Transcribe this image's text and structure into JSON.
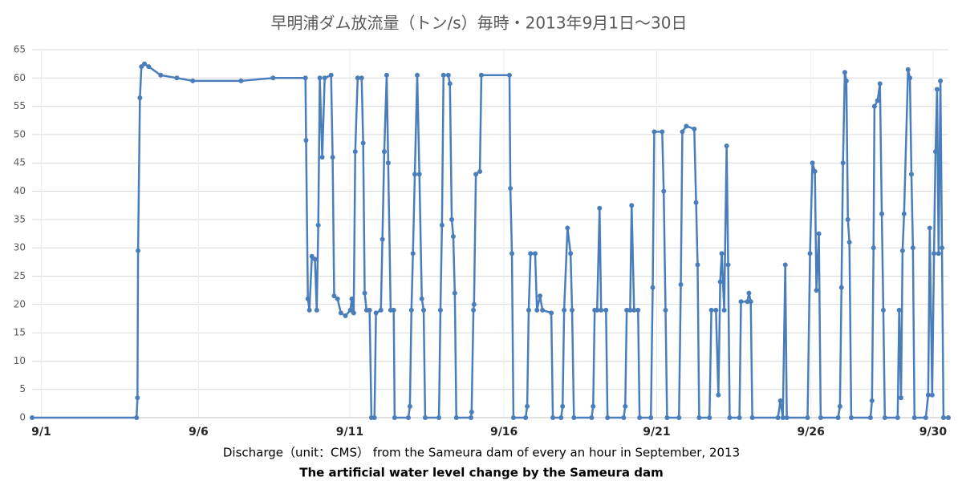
{
  "chart_data": {
    "type": "line",
    "title": "早明浦ダム放流量（トン/s）毎時・2013年9月1日～30日",
    "x_label": "Discharge（unit：CMS） from the Sameura dam of every an hour in September, 2013",
    "caption": "The artificial water level change by the Sameura dam",
    "color": "#4a7ebb",
    "grid": true,
    "markers": true,
    "xlim": [
      1,
      31
    ],
    "ylim": [
      0,
      65
    ],
    "yticks": [
      0,
      5,
      10,
      15,
      20,
      25,
      30,
      35,
      40,
      45,
      50,
      55,
      60,
      65
    ],
    "xticks": [
      {
        "value": 1.3,
        "label": "9/1"
      },
      {
        "value": 6.45,
        "label": "9/6"
      },
      {
        "value": 11.4,
        "label": "9/11"
      },
      {
        "value": 16.45,
        "label": "9/16"
      },
      {
        "value": 21.45,
        "label": "9/21"
      },
      {
        "value": 26.5,
        "label": "9/26"
      },
      {
        "value": 30.5,
        "label": "9/30"
      }
    ],
    "x": [
      1.0,
      4.42,
      4.45,
      4.47,
      4.53,
      4.58,
      4.68,
      4.82,
      5.21,
      5.74,
      6.26,
      7.84,
      8.89,
      9.95,
      9.97,
      10.03,
      10.08,
      10.16,
      10.26,
      10.32,
      10.37,
      10.42,
      10.5,
      10.58,
      10.79,
      10.84,
      10.89,
      11.0,
      11.11,
      11.26,
      11.42,
      11.47,
      11.53,
      11.58,
      11.66,
      11.79,
      11.84,
      11.89,
      11.95,
      12.05,
      12.11,
      12.21,
      12.26,
      12.42,
      12.47,
      12.53,
      12.61,
      12.66,
      12.74,
      12.84,
      12.87,
      13.32,
      13.37,
      13.42,
      13.47,
      13.53,
      13.61,
      13.68,
      13.76,
      13.82,
      13.87,
      14.32,
      14.37,
      14.42,
      14.47,
      14.63,
      14.68,
      14.74,
      14.79,
      14.84,
      14.89,
      15.37,
      15.39,
      15.45,
      15.47,
      15.53,
      15.66,
      15.71,
      16.63,
      16.66,
      16.71,
      16.76,
      17.16,
      17.21,
      17.26,
      17.32,
      17.47,
      17.53,
      17.63,
      17.71,
      18.0,
      18.05,
      18.32,
      18.37,
      18.42,
      18.53,
      18.63,
      18.68,
      18.74,
      19.32,
      19.37,
      19.42,
      19.5,
      19.58,
      19.63,
      19.79,
      19.84,
      20.37,
      20.42,
      20.47,
      20.58,
      20.63,
      20.71,
      20.84,
      20.89,
      21.26,
      21.32,
      21.37,
      21.63,
      21.68,
      21.74,
      21.79,
      22.18,
      22.24,
      22.29,
      22.42,
      22.68,
      22.74,
      22.79,
      22.84,
      23.18,
      23.24,
      23.39,
      23.47,
      23.53,
      23.58,
      23.66,
      23.74,
      23.79,
      23.84,
      24.16,
      24.21,
      24.42,
      24.47,
      24.53,
      24.58,
      25.42,
      25.5,
      25.58,
      25.66,
      25.71,
      26.39,
      26.47,
      26.55,
      26.63,
      26.68,
      26.76,
      26.82,
      27.39,
      27.45,
      27.5,
      27.55,
      27.61,
      27.66,
      27.71,
      27.76,
      27.82,
      28.45,
      28.5,
      28.55,
      28.58,
      28.68,
      28.76,
      28.82,
      28.87,
      28.92,
      29.34,
      29.39,
      29.45,
      29.5,
      29.55,
      29.68,
      29.74,
      29.79,
      29.84,
      29.89,
      30.26,
      30.34,
      30.39,
      30.47,
      30.53,
      30.58,
      30.63,
      30.68,
      30.74,
      30.79,
      30.84,
      31.0
    ],
    "values": [
      0,
      0,
      3.5,
      29.5,
      56.5,
      62,
      62.5,
      62,
      60.5,
      60,
      59.5,
      59.5,
      60,
      60,
      49,
      21,
      19,
      28.5,
      28,
      19,
      34,
      60,
      46,
      60,
      60.5,
      46,
      21.5,
      21,
      18.5,
      18,
      19,
      21,
      18.5,
      47,
      60,
      60,
      48.5,
      22,
      19,
      19,
      0,
      0,
      18.5,
      19,
      31.5,
      47,
      60.5,
      45,
      19,
      19,
      0,
      0,
      2,
      19,
      29,
      43,
      60.5,
      43,
      21,
      19,
      0,
      0,
      19,
      34,
      60.5,
      60.5,
      59,
      35,
      32,
      22,
      0,
      0,
      1,
      19,
      20,
      43,
      43.5,
      60.5,
      60.5,
      40.5,
      29,
      0,
      0,
      2,
      19,
      29,
      29,
      19,
      21.5,
      19,
      18.5,
      0,
      0,
      2,
      19,
      33.5,
      29,
      19,
      0,
      0,
      2,
      19,
      19,
      37,
      19,
      19,
      0,
      0,
      2,
      19,
      19,
      37.5,
      19,
      19,
      0,
      0,
      23,
      50.5,
      50.5,
      40,
      19,
      0,
      0,
      23.5,
      50.5,
      51.5,
      51,
      38,
      27,
      0,
      0,
      19,
      19,
      4,
      24,
      29,
      19,
      48,
      27,
      0,
      0,
      20.5,
      20.5,
      22,
      20.5,
      0,
      0,
      3,
      0,
      27,
      0,
      0,
      29,
      45,
      43.5,
      22.5,
      32.5,
      0,
      0,
      2,
      23,
      45,
      61,
      59.5,
      35,
      31,
      0,
      0,
      3,
      30,
      55,
      56,
      59,
      36,
      19,
      0,
      0,
      19,
      3.5,
      29.5,
      36,
      61.5,
      60,
      43,
      30,
      0,
      0,
      4,
      33.5,
      4,
      29,
      47,
      58,
      29,
      59.5,
      30,
      0,
      0
    ]
  }
}
